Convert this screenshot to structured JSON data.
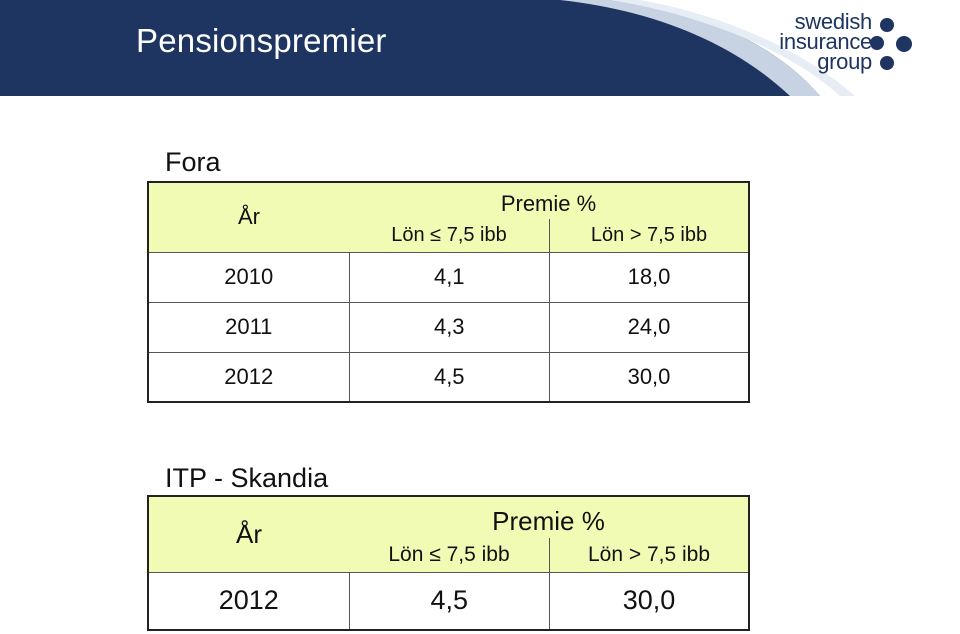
{
  "header": {
    "title": "Pensionspremier",
    "band_color": "#1d3560",
    "logo": {
      "lines": [
        "swedish",
        "insurance",
        "group"
      ]
    }
  },
  "tables": [
    {
      "title": "Fora",
      "year_label": "År",
      "premium_label": "Premie %",
      "col_low": "Lön ≤ 7,5 ibb",
      "col_high": "Lön > 7,5 ibb",
      "rows": [
        {
          "year": "2010",
          "low": "4,1",
          "high": "18,0"
        },
        {
          "year": "2011",
          "low": "4,3",
          "high": "24,0"
        },
        {
          "year": "2012",
          "low": "4,5",
          "high": "30,0"
        }
      ]
    },
    {
      "title": "ITP - Skandia",
      "year_label": "År",
      "premium_label": "Premie %",
      "col_low": "Lön ≤ 7,5 ibb",
      "col_high": "Lön > 7,5 ibb",
      "rows": [
        {
          "year": "2012",
          "low": "4,5",
          "high": "30,0"
        }
      ]
    }
  ]
}
